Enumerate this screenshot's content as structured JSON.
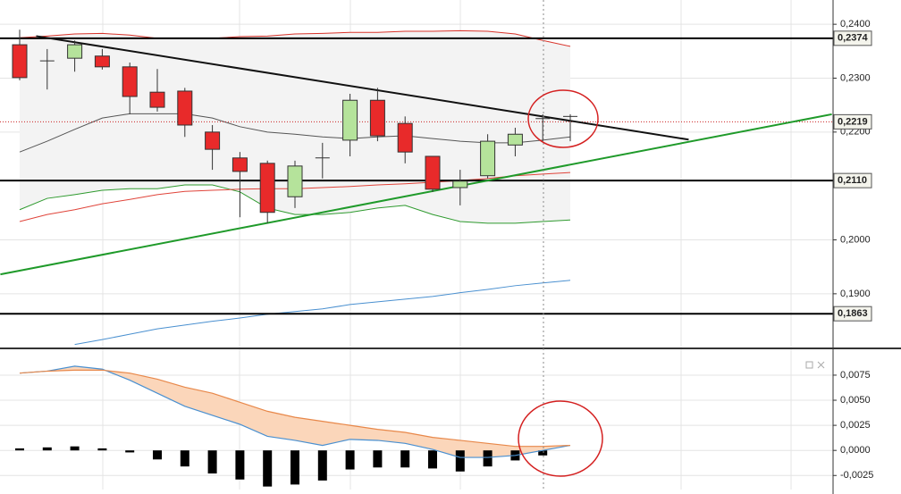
{
  "chart_data": [
    {
      "type": "candlestick",
      "open": [
        0.2362,
        0.2332,
        0.2337,
        0.2341,
        0.2321,
        0.2274,
        0.2276,
        0.22,
        0.2152,
        0.2142,
        0.208,
        0.2152,
        0.2185,
        0.2259,
        0.2216,
        0.2155,
        0.2097,
        0.2119,
        0.2176,
        0.2225,
        0.2229
      ],
      "high": [
        0.239,
        0.2354,
        0.237,
        0.2354,
        0.2329,
        0.2317,
        0.2282,
        0.2213,
        0.2163,
        0.2147,
        0.2147,
        0.218,
        0.2271,
        0.2282,
        0.2229,
        0.2155,
        0.213,
        0.2196,
        0.2208,
        0.2233,
        0.2233
      ],
      "low": [
        0.2296,
        0.2279,
        0.2312,
        0.2316,
        0.2233,
        0.2238,
        0.2191,
        0.213,
        0.2042,
        0.2031,
        0.2059,
        0.2114,
        0.2155,
        0.2183,
        0.2142,
        0.2089,
        0.2064,
        0.2114,
        0.2155,
        0.2183,
        0.2183
      ],
      "close": [
        0.2301,
        0.2332,
        0.2362,
        0.2321,
        0.2266,
        0.2246,
        0.2213,
        0.2168,
        0.2127,
        0.2051,
        0.2137,
        0.2152,
        0.2259,
        0.2193,
        0.2163,
        0.2094,
        0.2109,
        0.2183,
        0.2196,
        0.2225,
        0.2229
      ],
      "up_color": "#b5e39b",
      "down_color": "#e82a2a",
      "ylim": [
        0.1802,
        0.2445
      ],
      "yticks": [
        {
          "value": 0.24,
          "label": "0,2400"
        },
        {
          "value": 0.23,
          "label": "0,2300"
        },
        {
          "value": 0.22,
          "label": "0,2200"
        },
        {
          "value": 0.2,
          "label": "0,2000"
        },
        {
          "value": 0.19,
          "label": "0,1900"
        }
      ],
      "grid": true,
      "overlays": [
        {
          "color": "#d9342b",
          "values": [
            0.2375,
            0.2378,
            0.2382,
            0.2383,
            0.238,
            0.2374,
            0.2374,
            0.2374,
            0.2377,
            0.2378,
            0.2382,
            0.2383,
            0.2385,
            0.2385,
            0.2387,
            0.2387,
            0.2388,
            0.2387,
            0.2382,
            0.237,
            0.2359
          ]
        },
        {
          "color": "#555555",
          "values": [
            0.2163,
            0.2183,
            0.2205,
            0.2226,
            0.2234,
            0.2234,
            0.2234,
            0.2226,
            0.221,
            0.22,
            0.2196,
            0.2191,
            0.2188,
            0.2191,
            0.2193,
            0.2188,
            0.2183,
            0.218,
            0.218,
            0.2185,
            0.2191
          ]
        },
        {
          "color": "#2e9a2e",
          "values": [
            0.2056,
            0.2077,
            0.2084,
            0.2092,
            0.2095,
            0.2095,
            0.2102,
            0.2102,
            0.2089,
            0.2059,
            0.2047,
            0.2047,
            0.2051,
            0.2059,
            0.2064,
            0.2047,
            0.2034,
            0.2031,
            0.2031,
            0.2034,
            0.2037
          ]
        },
        {
          "color": "#e0443a",
          "values": [
            0.2034,
            0.2047,
            0.2056,
            0.2067,
            0.2075,
            0.2084,
            0.209,
            0.2092,
            0.2094,
            0.2095,
            0.2095,
            0.2097,
            0.2099,
            0.2102,
            0.2104,
            0.2107,
            0.211,
            0.2114,
            0.2119,
            0.2122,
            0.2125
          ]
        },
        {
          "color": "#4a90d0",
          "values": [
            null,
            null,
            0.1806,
            0.1815,
            0.1825,
            0.1835,
            0.1842,
            0.1849,
            0.1855,
            0.1862,
            0.1867,
            0.1872,
            0.188,
            0.1885,
            0.189,
            0.1895,
            0.1902,
            0.1908,
            0.1915,
            0.192,
            0.1925
          ]
        }
      ],
      "trendlines": [
        {
          "color": "#111111",
          "x": [
            0.6,
            24.3
          ],
          "values": [
            0.2378,
            0.2186
          ]
        },
        {
          "color": "#1f9a2a",
          "x": [
            -0.7,
            29.5
          ],
          "values": [
            0.1936,
            0.2233
          ]
        }
      ],
      "levels": [
        {
          "value": 0.2374,
          "label": "0,2374",
          "color": "#000000"
        },
        {
          "value": 0.2219,
          "label": "0,2219",
          "color": "#cc2222"
        },
        {
          "value": 0.211,
          "label": "0,2110",
          "color": "#000000"
        },
        {
          "value": 0.1863,
          "label": "0,1863",
          "color": "#000000"
        }
      ]
    },
    {
      "type": "macd",
      "series": [
        {
          "color": "#4a90d0",
          "values": [
            0.0077,
            0.0079,
            0.0084,
            0.0081,
            0.007,
            0.0057,
            0.0044,
            0.0035,
            0.0026,
            0.0014,
            0.001,
            0.0005,
            0.0011,
            0.001,
            0.0007,
            0.0001,
            -0.0007,
            -0.0007,
            -0.0005,
            0.0,
            0.0005
          ]
        },
        {
          "color": "#e8884a",
          "values": [
            0.0077,
            0.0079,
            0.008,
            0.008,
            0.0077,
            0.0071,
            0.0063,
            0.0057,
            0.0048,
            0.0039,
            0.0033,
            0.0029,
            0.0025,
            0.0021,
            0.0018,
            0.0013,
            0.001,
            0.0007,
            0.0004,
            0.0004,
            0.0005
          ]
        }
      ],
      "histogram": [
        0.0002,
        0.0003,
        0.0004,
        0.0002,
        -0.0002,
        -0.0009,
        -0.0016,
        -0.0023,
        -0.0029,
        -0.0036,
        -0.0034,
        -0.003,
        -0.0019,
        -0.0017,
        -0.0017,
        -0.0018,
        -0.0021,
        -0.0016,
        -0.001,
        -0.0005,
        null
      ],
      "fill_color": "#fbd6ba",
      "ylim": [
        -0.0039,
        0.0099
      ],
      "yticks": [
        {
          "value": 0.0075,
          "label": "0,0075"
        },
        {
          "value": 0.005,
          "label": "0,0050"
        },
        {
          "value": 0.0025,
          "label": "0,0025"
        },
        {
          "value": 0,
          "label": "0,0000"
        },
        {
          "value": -0.0025,
          "label": "-0,0025"
        }
      ],
      "grid": true
    }
  ]
}
